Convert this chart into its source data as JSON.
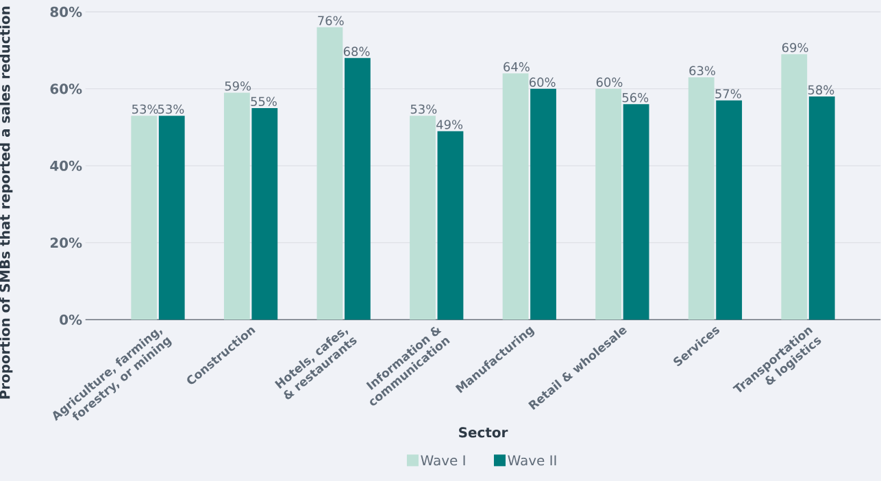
{
  "chart_data": {
    "type": "bar",
    "xlabel": "Sector",
    "ylabel": "Proportion of SMBs that reported a sales reduction",
    "categories": [
      "Agriculture, farming, forestry, or mining",
      "Construction",
      "Hotels, cafes, & restaurants",
      "Information & communication",
      "Manufacturing",
      "Retail & wholesale",
      "Services",
      "Transportation & logistics"
    ],
    "series": [
      {
        "name": "Wave I",
        "color": "#bde0d6",
        "values": [
          53,
          59,
          76,
          53,
          64,
          60,
          63,
          69
        ],
        "value_labels": [
          "53%",
          "59%",
          "76%",
          "53%",
          "64%",
          "60%",
          "63%",
          "69%"
        ]
      },
      {
        "name": "Wave II",
        "color": "#007b7b",
        "values": [
          53,
          55,
          68,
          49,
          60,
          56,
          57,
          58
        ],
        "value_labels": [
          "53%",
          "55%",
          "68%",
          "49%",
          "60%",
          "56%",
          "57%",
          "58%"
        ]
      }
    ],
    "ylim": [
      0,
      80
    ],
    "yticks": [
      {
        "value": 0,
        "label": "0%"
      },
      {
        "value": 20,
        "label": "20%"
      },
      {
        "value": 40,
        "label": "40%"
      },
      {
        "value": 60,
        "label": "60%"
      },
      {
        "value": 80,
        "label": "80%"
      }
    ],
    "grid": "y",
    "legend": "bottom"
  }
}
